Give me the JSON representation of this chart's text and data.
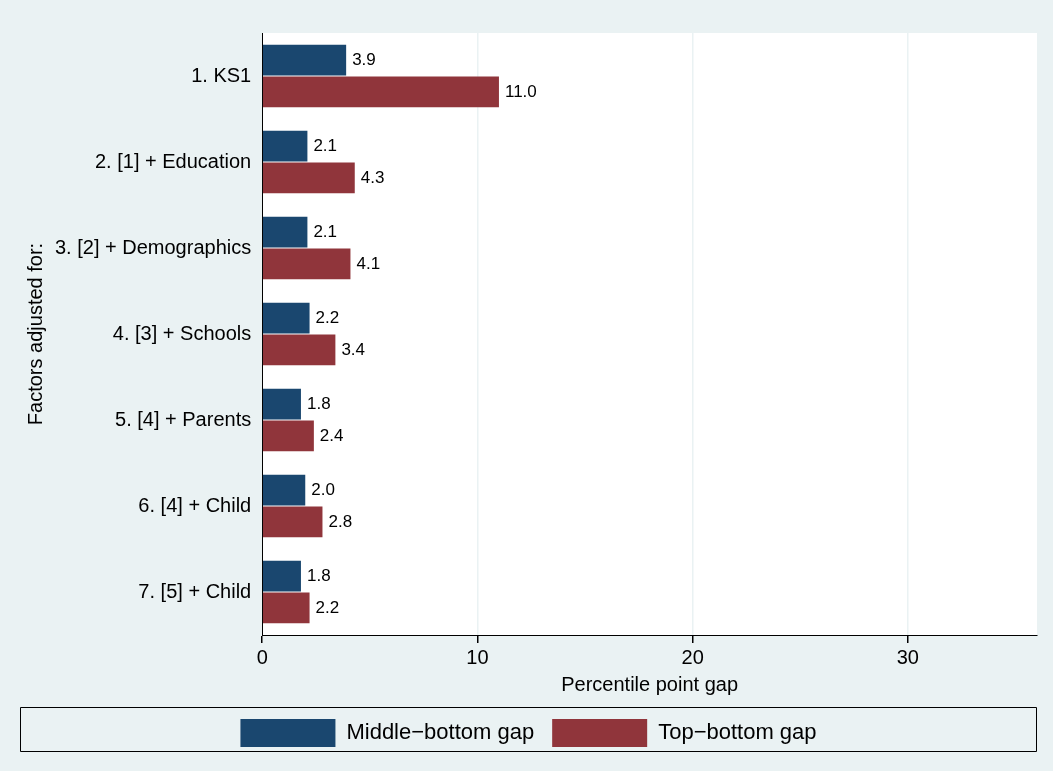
{
  "chart_data": {
    "type": "bar",
    "orientation": "horizontal",
    "xlabel": "Percentile point gap",
    "ylabel": "Factors adjusted for:",
    "categories": [
      "1. KS1",
      "2. [1] + Education",
      "3. [2] + Demographics",
      "4. [3] + Schools",
      "5. [4] + Parents",
      "6. [4] + Child",
      "7. [5] + Child"
    ],
    "series": [
      {
        "name": "Middle−bottom gap",
        "color": "#1a476f",
        "values": [
          3.9,
          2.1,
          2.1,
          2.2,
          1.8,
          2.0,
          1.8
        ],
        "value_labels": [
          "3.9",
          "2.1",
          "2.1",
          "2.2",
          "1.8",
          "2.0",
          "1.8"
        ]
      },
      {
        "name": "Top−bottom gap",
        "color": "#90353b",
        "values": [
          11.0,
          4.3,
          4.1,
          3.4,
          2.4,
          2.8,
          2.2
        ],
        "value_labels": [
          "11.0",
          "4.3",
          "4.1",
          "3.4",
          "2.4",
          "2.8",
          "2.2"
        ]
      }
    ],
    "xlim": [
      0,
      36
    ],
    "xticks": [
      0,
      10,
      20,
      30
    ],
    "grid": "x",
    "legend": "bottom"
  }
}
